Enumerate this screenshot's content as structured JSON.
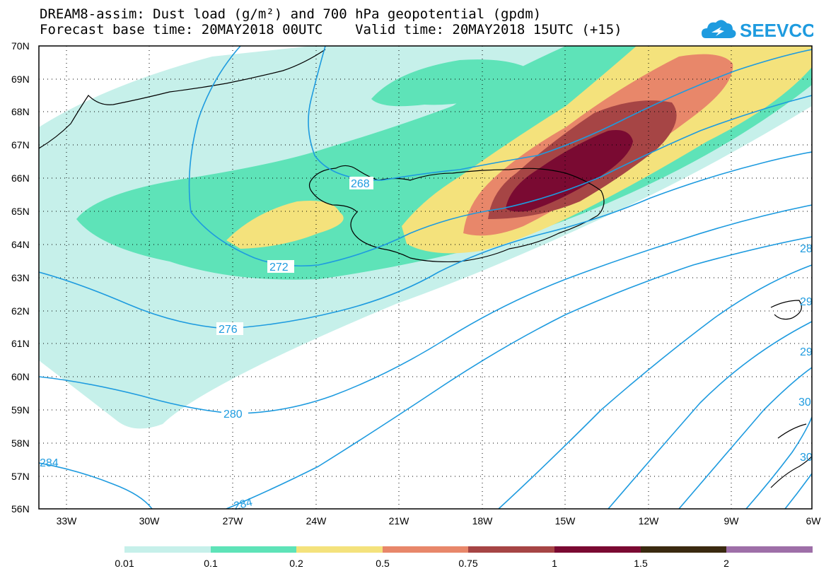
{
  "title": {
    "line1": "DREAM8-assim: Dust load (g/m²) and 700 hPa geopotential (gpdm)",
    "line2": "Forecast base time: 20MAY2018 00UTC    Valid time: 20MAY2018 15UTC (+15)"
  },
  "logo": {
    "text": "SEEVCCC",
    "icon": "cloud-logo-icon",
    "color": "#1e9bdf"
  },
  "lat_labels": [
    "70N",
    "69N",
    "68N",
    "67N",
    "66N",
    "65N",
    "64N",
    "63N",
    "62N",
    "61N",
    "60N",
    "59N",
    "58N",
    "57N",
    "56N"
  ],
  "lon_labels": [
    "33W",
    "30W",
    "27W",
    "24W",
    "21W",
    "18W",
    "15W",
    "12W",
    "9W",
    "6W"
  ],
  "contour_labels": [
    "268",
    "272",
    "276",
    "280",
    "284",
    "284",
    "28",
    "29",
    "29",
    "30",
    "30"
  ],
  "colorbar": {
    "ticks": [
      "0.01",
      "0.1",
      "0.2",
      "0.5",
      "0.75",
      "1",
      "1.5",
      "2"
    ],
    "colors": [
      "#c6f0ea",
      "#5ee3b8",
      "#f4e27c",
      "#e8876a",
      "#a64545",
      "#7a0a32",
      "#3a2a10",
      "#9e6fa8"
    ]
  },
  "colors": {
    "contour": "#1e9bdf",
    "coast": "#000000"
  }
}
